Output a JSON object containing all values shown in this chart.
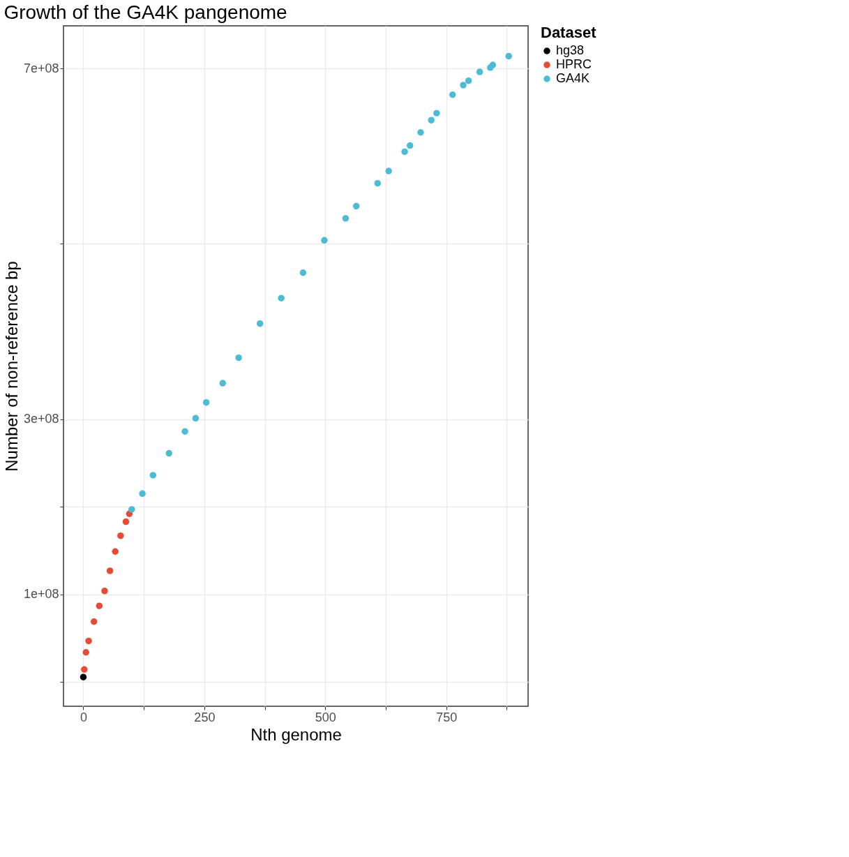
{
  "chart_data": {
    "type": "scatter",
    "title": "Growth of the GA4K pangenome",
    "xlabel": "Nth genome",
    "ylabel": "Number of non-reference bp",
    "legend_title": "Dataset",
    "legend": "right",
    "grid": true,
    "marker": "circle",
    "xlim": [
      -41,
      919
    ],
    "ylim": [
      -27500000,
      748600000
    ],
    "xticks": [
      0,
      {
        "value": 125,
        "label": null
      },
      250,
      {
        "value": 375,
        "label": null
      },
      500,
      {
        "value": 625,
        "label": null
      },
      750,
      {
        "value": 875,
        "label": null
      }
    ],
    "yticks": [
      {
        "value": 0,
        "label": null
      },
      {
        "value": 100000000,
        "label": "1e+08"
      },
      {
        "value": 200000000,
        "label": null
      },
      {
        "value": 300000000,
        "label": "3e+08"
      },
      {
        "value": 500000000,
        "label": null
      },
      {
        "value": 700000000,
        "label": "7e+08"
      }
    ],
    "series": [
      {
        "name": "hg38",
        "color": "#000000",
        "x": [
          0
        ],
        "values": [
          5800000
        ]
      },
      {
        "name": "HPRC",
        "color": "#e64b35",
        "x": [
          2,
          5.5,
          11,
          22,
          33,
          44,
          55,
          66,
          77,
          88,
          95
        ],
        "values": [
          14500000,
          34000000,
          47000000,
          69000000,
          87000000,
          104000000,
          127000000,
          149000000,
          167000000,
          183000000,
          192000000
        ]
      },
      {
        "name": "GA4K",
        "color": "#4dbbd5",
        "x": [
          100,
          122,
          144,
          177,
          210,
          232,
          254,
          288,
          321,
          365,
          409,
          454,
          498,
          542,
          564,
          608,
          631,
          664,
          675,
          697,
          719,
          730,
          763,
          785,
          796,
          819,
          841,
          846,
          879
        ],
        "values": [
          197000000,
          215000000,
          236000000,
          261000000,
          286000000,
          301000000,
          319000000,
          341000000,
          370000000,
          409000000,
          438000000,
          467000000,
          504000000,
          529000000,
          543000000,
          569000000,
          583000000,
          605000000,
          612000000,
          627000000,
          641000000,
          649000000,
          670000000,
          681000000,
          686000000,
          696000000,
          701000000,
          704000000,
          714000000
        ]
      }
    ]
  }
}
